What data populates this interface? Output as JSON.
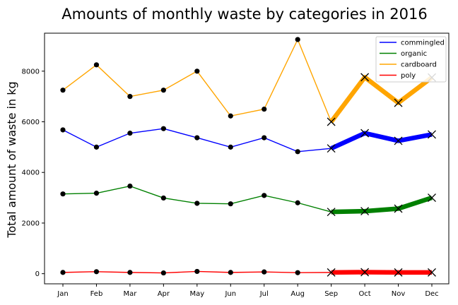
{
  "chart_data": {
    "type": "line",
    "title": "Amounts of monthly waste by categories in 2016",
    "xlabel": "",
    "ylabel": "Total amount of waste in kg",
    "categories": [
      "Jan",
      "Feb",
      "Mar",
      "Apr",
      "May",
      "Jun",
      "Jul",
      "Aug",
      "Sep",
      "Oct",
      "Nov",
      "Dec"
    ],
    "ylim": [
      -400,
      9500
    ],
    "yticks": [
      "0",
      "2000",
      "4000",
      "6000",
      "8000"
    ],
    "grid": false,
    "legend_position": "upper right",
    "actual_months": 8,
    "predicted_months": 4,
    "series": [
      {
        "name": "commingled",
        "color": "#0000ff",
        "values": [
          5680,
          5000,
          5550,
          5730,
          5370,
          5000,
          5370,
          4820,
          4950,
          5550,
          5250,
          5500
        ]
      },
      {
        "name": "organic",
        "color": "#008000",
        "values": [
          3150,
          3180,
          3460,
          2990,
          2780,
          2760,
          3090,
          2800,
          2440,
          2470,
          2570,
          3000
        ]
      },
      {
        "name": "cardboard",
        "color": "#ffa500",
        "values": [
          7250,
          8250,
          7000,
          7250,
          8000,
          6230,
          6500,
          9250,
          6000,
          7760,
          6750,
          7750
        ]
      },
      {
        "name": "poly",
        "color": "#ff0000",
        "values": [
          50,
          80,
          50,
          30,
          90,
          50,
          70,
          40,
          50,
          60,
          50,
          50
        ]
      }
    ]
  }
}
